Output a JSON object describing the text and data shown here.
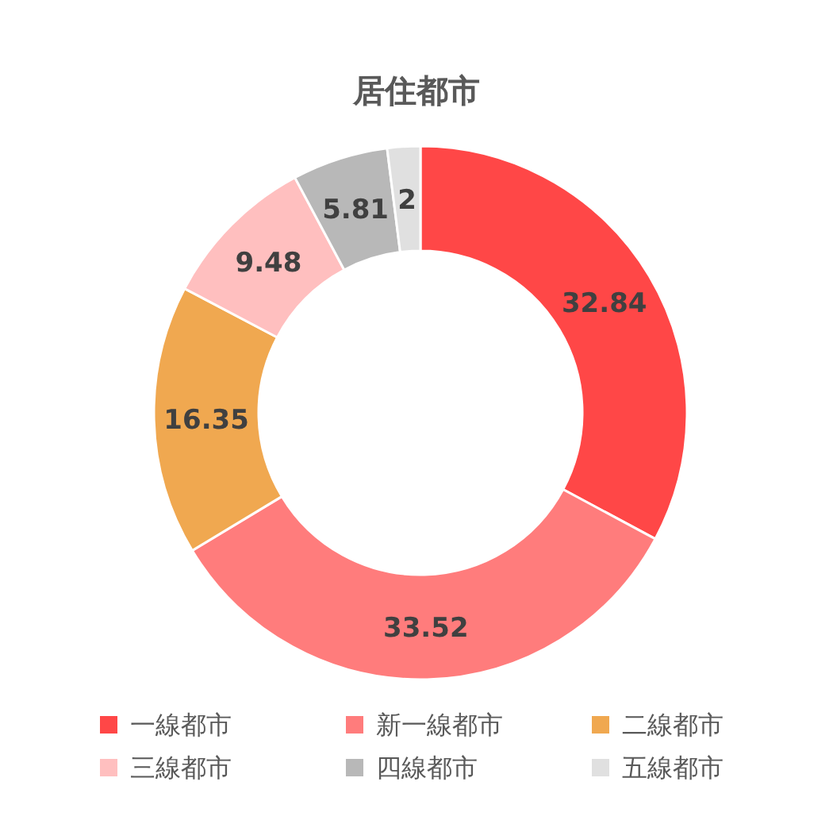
{
  "chart_data": {
    "type": "donut",
    "title": "居住都市",
    "categories": [
      "一線都市",
      "新一線都市",
      "二線都市",
      "三線都市",
      "四線都市",
      "五線都市"
    ],
    "values": [
      32.84,
      33.52,
      16.35,
      9.48,
      5.81,
      2
    ],
    "colors": [
      "#ff4747",
      "#ff7c7c",
      "#f0a850",
      "#ffbfbf",
      "#b8b8b8",
      "#e0e0e0"
    ],
    "data_labels": true,
    "legend": "bottom"
  }
}
